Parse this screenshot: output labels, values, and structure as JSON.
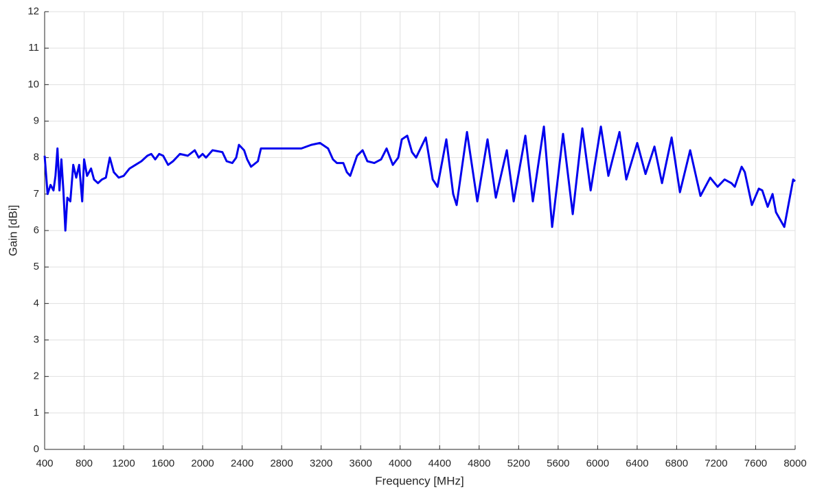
{
  "chart_data": {
    "type": "line",
    "xlabel": "Frequency [MHz]",
    "ylabel": "Gain [dBi]",
    "xlim": [
      400,
      8000
    ],
    "xticks": [
      400,
      800,
      1200,
      1600,
      2000,
      2400,
      2800,
      3200,
      3600,
      4000,
      4400,
      4800,
      5200,
      5600,
      6000,
      6400,
      6800,
      7200,
      7600,
      8000
    ],
    "ylim": [
      0,
      12
    ],
    "yticks": [
      0,
      1,
      2,
      3,
      4,
      5,
      6,
      7,
      8,
      9,
      10,
      11,
      12
    ],
    "grid": true,
    "series": [
      {
        "color": "#0000ee",
        "x": [
          400,
          430,
          460,
          490,
          510,
          530,
          550,
          570,
          590,
          610,
          630,
          660,
          690,
          720,
          750,
          780,
          800,
          830,
          870,
          900,
          940,
          980,
          1020,
          1060,
          1100,
          1150,
          1200,
          1260,
          1320,
          1380,
          1440,
          1480,
          1520,
          1560,
          1600,
          1650,
          1700,
          1770,
          1850,
          1920,
          1960,
          2000,
          2034,
          2100,
          2200,
          2243,
          2300,
          2340,
          2368,
          2420,
          2451,
          2490,
          2560,
          2590,
          2660,
          2800,
          2900,
          3000,
          3100,
          3188,
          3270,
          3320,
          3360,
          3425,
          3460,
          3494,
          3564,
          3620,
          3668,
          3738,
          3807,
          3863,
          3926,
          3981,
          4017,
          4072,
          4120,
          4162,
          4260,
          4330,
          4378,
          4468,
          4537,
          4572,
          4677,
          4781,
          4885,
          4969,
          5080,
          5150,
          5268,
          5344,
          5456,
          5539,
          5650,
          5748,
          5845,
          5929,
          6033,
          6109,
          6221,
          6290,
          6401,
          6485,
          6575,
          6652,
          6749,
          6833,
          6937,
          7041,
          7110,
          7140,
          7215,
          7285,
          7354,
          7389,
          7458,
          7490,
          7562,
          7632,
          7667,
          7722,
          7771,
          7806,
          7890,
          7980,
          8000
        ],
        "values": [
          8.05,
          7.0,
          7.25,
          7.1,
          7.5,
          8.25,
          7.1,
          7.95,
          7.1,
          6.0,
          6.9,
          6.8,
          7.8,
          7.45,
          7.8,
          6.8,
          7.95,
          7.5,
          7.7,
          7.4,
          7.3,
          7.4,
          7.45,
          8.0,
          7.6,
          7.45,
          7.5,
          7.7,
          7.8,
          7.9,
          8.05,
          8.1,
          7.95,
          8.1,
          8.05,
          7.8,
          7.9,
          8.1,
          8.05,
          8.2,
          8.0,
          8.1,
          8.0,
          8.2,
          8.15,
          7.9,
          7.85,
          8.0,
          8.35,
          8.2,
          7.95,
          7.75,
          7.9,
          8.25,
          8.25,
          8.25,
          8.25,
          8.25,
          8.35,
          8.4,
          8.25,
          7.95,
          7.85,
          7.85,
          7.6,
          7.5,
          8.05,
          8.2,
          7.9,
          7.85,
          7.95,
          8.25,
          7.8,
          8.0,
          8.5,
          8.6,
          8.15,
          8.0,
          8.55,
          7.4,
          7.2,
          8.5,
          7.0,
          6.7,
          8.7,
          6.8,
          8.5,
          6.9,
          8.2,
          6.8,
          8.6,
          6.8,
          8.85,
          6.1,
          8.65,
          6.45,
          8.8,
          7.1,
          8.85,
          7.5,
          8.7,
          7.4,
          8.4,
          7.55,
          8.3,
          7.3,
          8.55,
          7.05,
          8.2,
          6.95,
          7.3,
          7.45,
          7.2,
          7.4,
          7.3,
          7.2,
          7.75,
          7.6,
          6.7,
          7.15,
          7.1,
          6.65,
          7.0,
          6.5,
          6.1,
          7.4,
          7.35
        ]
      }
    ]
  }
}
